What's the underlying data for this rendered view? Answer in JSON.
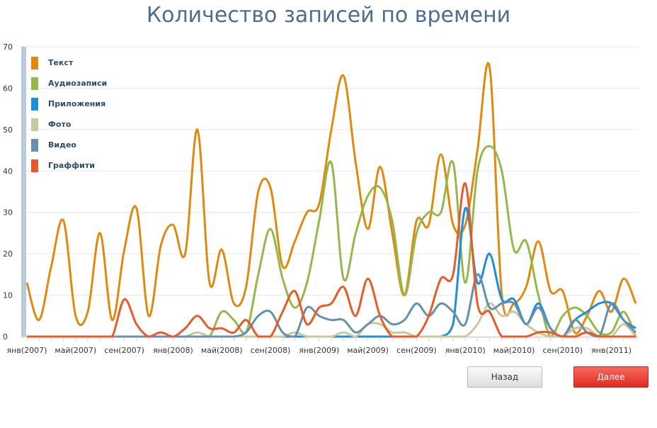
{
  "chart_data": {
    "type": "line",
    "title": "Количество записей по времени",
    "ylim": [
      0,
      70
    ],
    "yticks": [
      0,
      10,
      20,
      30,
      40,
      50,
      60,
      70
    ],
    "grid": true,
    "legend_position": "top-left",
    "x_tick_labels": [
      "янв(2007)",
      "май(2007)",
      "сен(2007)",
      "янв(2008)",
      "май(2008)",
      "сен(2008)",
      "янв(2009)",
      "май(2009)",
      "сен(2009)",
      "янв(2010)",
      "май(2010)",
      "сен(2010)",
      "янв(2011)"
    ],
    "x_start": "2007-01",
    "x_end": "2011-03",
    "series": [
      {
        "name": "Текст",
        "color": "#e0890f",
        "values": [
          13,
          4,
          17,
          28,
          5,
          6,
          25,
          4,
          21,
          31,
          5,
          22,
          27,
          20,
          50,
          13,
          21,
          8,
          12,
          35,
          36,
          17,
          23,
          30,
          32,
          50,
          63,
          42,
          26,
          41,
          25,
          10,
          28,
          27,
          44,
          27,
          27,
          45,
          65,
          10,
          8,
          12,
          23,
          11,
          11,
          1,
          5,
          11,
          6,
          14,
          8
        ]
      },
      {
        "name": "Аудиозаписи",
        "color": "#94b84a",
        "values": [
          0,
          0,
          0,
          0,
          0,
          0,
          0,
          0,
          0,
          0,
          0,
          0,
          0,
          0,
          0,
          0,
          6,
          4,
          1,
          15,
          26,
          14,
          7,
          13,
          28,
          42,
          14,
          25,
          34,
          36,
          28,
          10,
          25,
          30,
          30,
          42,
          13,
          40,
          46,
          40,
          21,
          23,
          10,
          0,
          5,
          7,
          5,
          1,
          1,
          6,
          0
        ]
      },
      {
        "name": "Приложения",
        "color": "#1e8ed8",
        "values": [
          0,
          0,
          0,
          0,
          0,
          0,
          0,
          0,
          0,
          0,
          0,
          0,
          0,
          0,
          0,
          0,
          0,
          0,
          0,
          0,
          0,
          0,
          0,
          0,
          0,
          0,
          0,
          0,
          0,
          0,
          0,
          0,
          0,
          0,
          0,
          3,
          31,
          13,
          20,
          9,
          9,
          3,
          8,
          2,
          0,
          4,
          6,
          8,
          8,
          4,
          2
        ]
      },
      {
        "name": "Фото",
        "color": "#c8c99a",
        "values": [
          0,
          0,
          0,
          0,
          0,
          0,
          0,
          0,
          0,
          0,
          0,
          0,
          0,
          0,
          1,
          0,
          0,
          0,
          0,
          0,
          0,
          0,
          1,
          0,
          0,
          0,
          1,
          0,
          3,
          3,
          1,
          1,
          0,
          0,
          0,
          0,
          0,
          3,
          8,
          5,
          6,
          3,
          1,
          0,
          0,
          2,
          2,
          0,
          0,
          3,
          0
        ]
      },
      {
        "name": "Видео",
        "color": "#6690b0",
        "values": [
          0,
          0,
          0,
          0,
          0,
          0,
          0,
          0,
          0,
          0,
          0,
          0,
          0,
          0,
          0,
          0,
          0,
          0,
          1,
          5,
          6,
          1,
          0,
          7,
          5,
          4,
          4,
          1,
          3,
          5,
          3,
          4,
          8,
          5,
          8,
          6,
          3,
          15,
          7,
          8,
          8,
          3,
          7,
          2,
          0,
          4,
          1,
          0,
          8,
          4,
          1
        ]
      },
      {
        "name": "Граффити",
        "color": "#e85a28",
        "values": [
          0,
          0,
          0,
          0,
          0,
          0,
          0,
          0,
          9,
          3,
          0,
          1,
          0,
          2,
          5,
          2,
          2,
          1,
          4,
          0,
          0,
          6,
          11,
          3,
          7,
          8,
          12,
          5,
          14,
          5,
          0,
          0,
          0,
          5,
          14,
          15,
          37,
          8,
          6,
          0,
          0,
          0,
          1,
          1,
          0,
          0,
          1,
          0,
          0,
          0,
          0
        ]
      }
    ]
  },
  "buttons": {
    "back": "Назад",
    "next": "Далее"
  }
}
